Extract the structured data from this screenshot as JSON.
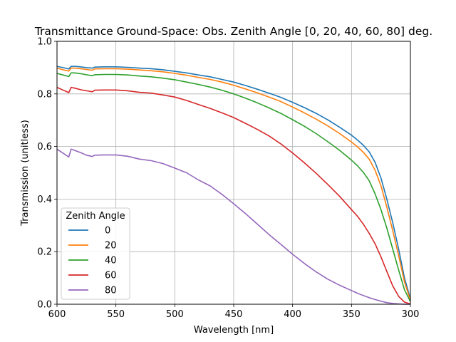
{
  "chart_data": {
    "type": "line",
    "title": "Transmittance Ground-Space: Obs. Zenith Angle [0, 20, 40, 60, 80] deg.",
    "xlabel": "Wavelength [nm]",
    "ylabel": "Transmission (unitless)",
    "xlim": [
      600,
      300
    ],
    "ylim": [
      0,
      1
    ],
    "xticks": [
      "600",
      "550",
      "500",
      "450",
      "400",
      "350",
      "300"
    ],
    "yticks": [
      "0.0",
      "0.2",
      "0.4",
      "0.6",
      "0.8",
      "1.0"
    ],
    "grid": true,
    "legend": {
      "title": "Zenith Angle",
      "placement": "lower-left"
    },
    "series": [
      {
        "name": "0",
        "color": "#1f77b4",
        "x": [
          600,
          595,
          590,
          588,
          585,
          580,
          575,
          570,
          568,
          560,
          550,
          540,
          530,
          520,
          510,
          500,
          490,
          480,
          470,
          460,
          450,
          440,
          430,
          420,
          410,
          400,
          390,
          380,
          370,
          360,
          350,
          345,
          340,
          335,
          330,
          325,
          320,
          315,
          310,
          305,
          300
        ],
        "y": [
          0.905,
          0.9,
          0.895,
          0.905,
          0.905,
          0.903,
          0.9,
          0.898,
          0.902,
          0.903,
          0.903,
          0.901,
          0.898,
          0.896,
          0.892,
          0.886,
          0.88,
          0.872,
          0.865,
          0.855,
          0.845,
          0.832,
          0.818,
          0.803,
          0.787,
          0.768,
          0.748,
          0.726,
          0.701,
          0.673,
          0.643,
          0.625,
          0.605,
          0.58,
          0.54,
          0.48,
          0.4,
          0.31,
          0.21,
          0.1,
          0.02
        ]
      },
      {
        "name": "20",
        "color": "#ff7f0e",
        "x": [
          600,
          595,
          590,
          588,
          585,
          580,
          575,
          570,
          568,
          560,
          550,
          540,
          530,
          520,
          510,
          500,
          490,
          480,
          470,
          460,
          450,
          440,
          430,
          420,
          410,
          400,
          390,
          380,
          370,
          360,
          350,
          345,
          340,
          335,
          330,
          325,
          320,
          315,
          310,
          305,
          300
        ],
        "y": [
          0.898,
          0.892,
          0.887,
          0.898,
          0.898,
          0.896,
          0.893,
          0.89,
          0.895,
          0.896,
          0.896,
          0.894,
          0.891,
          0.888,
          0.884,
          0.878,
          0.871,
          0.863,
          0.855,
          0.845,
          0.833,
          0.819,
          0.804,
          0.788,
          0.771,
          0.75,
          0.728,
          0.704,
          0.678,
          0.649,
          0.617,
          0.599,
          0.578,
          0.552,
          0.51,
          0.45,
          0.37,
          0.28,
          0.185,
          0.085,
          0.015
        ]
      },
      {
        "name": "40",
        "color": "#2ca02c",
        "x": [
          600,
          595,
          590,
          588,
          585,
          580,
          575,
          570,
          568,
          560,
          550,
          540,
          530,
          520,
          510,
          500,
          490,
          480,
          470,
          460,
          450,
          440,
          430,
          420,
          410,
          400,
          390,
          380,
          370,
          360,
          350,
          345,
          340,
          335,
          330,
          325,
          320,
          315,
          310,
          305,
          300
        ],
        "y": [
          0.878,
          0.872,
          0.866,
          0.88,
          0.88,
          0.877,
          0.873,
          0.869,
          0.873,
          0.874,
          0.874,
          0.872,
          0.868,
          0.865,
          0.86,
          0.854,
          0.845,
          0.836,
          0.826,
          0.814,
          0.8,
          0.784,
          0.766,
          0.747,
          0.726,
          0.702,
          0.677,
          0.649,
          0.618,
          0.585,
          0.548,
          0.527,
          0.502,
          0.47,
          0.42,
          0.36,
          0.29,
          0.21,
          0.13,
          0.055,
          0.01
        ]
      },
      {
        "name": "60",
        "color": "#d62728",
        "x": [
          600,
          595,
          590,
          588,
          585,
          580,
          575,
          570,
          568,
          560,
          550,
          540,
          530,
          520,
          510,
          500,
          490,
          480,
          470,
          460,
          450,
          440,
          430,
          420,
          410,
          400,
          390,
          380,
          370,
          360,
          350,
          345,
          340,
          335,
          330,
          325,
          320,
          315,
          310,
          305,
          300
        ],
        "y": [
          0.825,
          0.815,
          0.805,
          0.825,
          0.822,
          0.816,
          0.812,
          0.808,
          0.814,
          0.815,
          0.815,
          0.812,
          0.806,
          0.803,
          0.796,
          0.788,
          0.775,
          0.76,
          0.745,
          0.728,
          0.71,
          0.688,
          0.665,
          0.64,
          0.61,
          0.575,
          0.538,
          0.498,
          0.455,
          0.41,
          0.36,
          0.335,
          0.305,
          0.27,
          0.23,
          0.18,
          0.125,
          0.07,
          0.03,
          0.008,
          0.001
        ]
      },
      {
        "name": "80",
        "color": "#9467bd",
        "x": [
          600,
          595,
          590,
          588,
          585,
          580,
          575,
          570,
          568,
          560,
          550,
          540,
          530,
          520,
          510,
          500,
          490,
          480,
          470,
          460,
          450,
          440,
          430,
          420,
          410,
          400,
          390,
          380,
          370,
          360,
          350,
          345,
          340,
          335,
          330,
          325,
          320,
          315,
          310,
          305,
          300
        ],
        "y": [
          0.59,
          0.575,
          0.56,
          0.59,
          0.585,
          0.577,
          0.567,
          0.562,
          0.567,
          0.568,
          0.568,
          0.563,
          0.552,
          0.546,
          0.535,
          0.518,
          0.5,
          0.473,
          0.45,
          0.418,
          0.382,
          0.345,
          0.305,
          0.265,
          0.228,
          0.19,
          0.155,
          0.123,
          0.095,
          0.072,
          0.052,
          0.042,
          0.033,
          0.025,
          0.018,
          0.012,
          0.006,
          0.003,
          0.001,
          0.0,
          0.0
        ]
      }
    ]
  }
}
